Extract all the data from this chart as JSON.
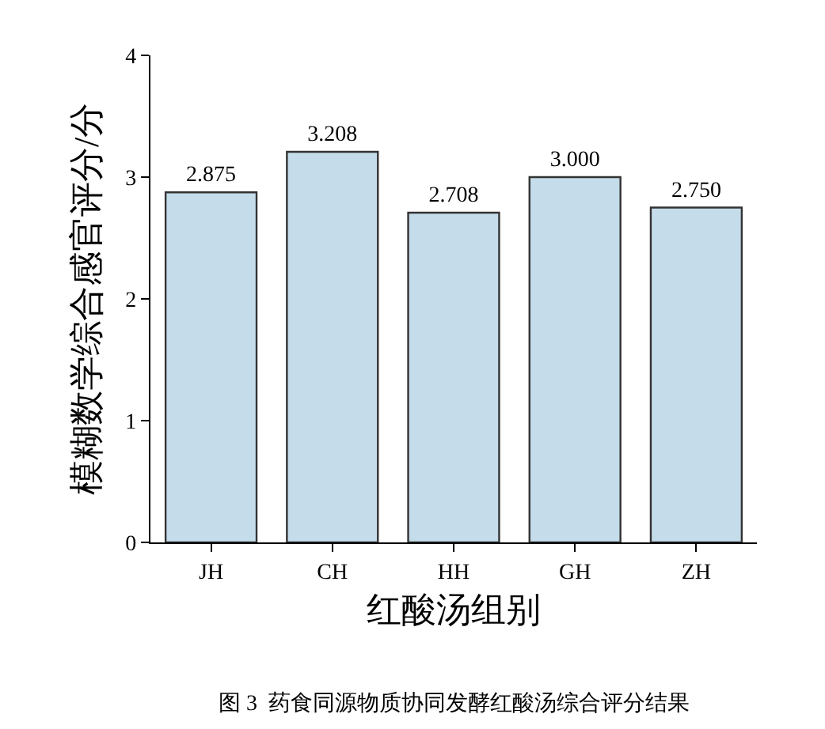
{
  "chart_data": {
    "type": "bar",
    "xlabel": "红酸汤组别",
    "ylabel": "模糊数学综合感官评分/分",
    "categories": [
      "JH",
      "CH",
      "HH",
      "GH",
      "ZH"
    ],
    "values": [
      2.875,
      3.208,
      2.708,
      3.0,
      2.75
    ],
    "value_labels": [
      "2.875",
      "3.208",
      "2.708",
      "3.000",
      "2.750"
    ],
    "color": "#c5dcea",
    "ylim": [
      0,
      4
    ],
    "yticks": [
      0,
      1,
      2,
      3,
      4
    ],
    "grid": false,
    "annotations": [
      "图 3  药食同源物质协同发酵红酸汤综合评分结果"
    ]
  }
}
